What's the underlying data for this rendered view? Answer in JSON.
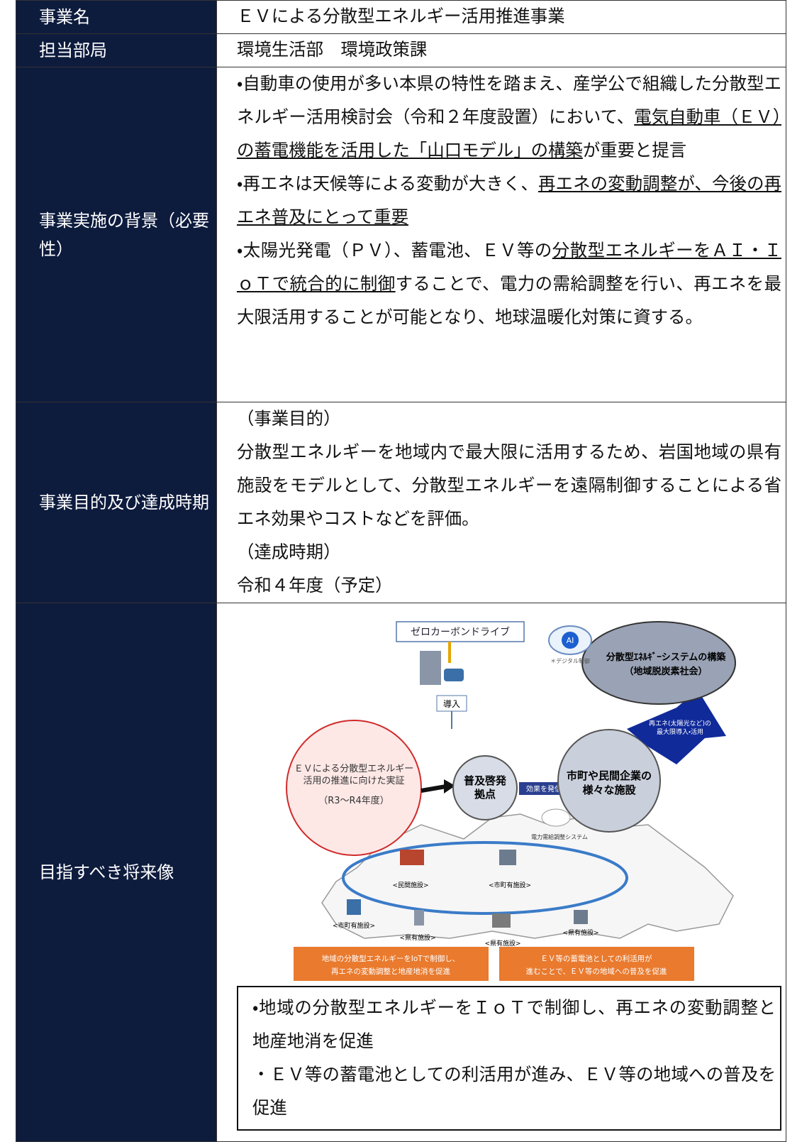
{
  "table": {
    "rows": [
      {
        "label": "事業名",
        "content": "ＥＶによる分散型エネルギー活用推進事業"
      },
      {
        "label": "担当部局",
        "content": "環境生活部　環境政策課"
      },
      {
        "label": "事業実施の背景（必要性）",
        "paragraphs": [
          [
            {
              "text": "・自動車の使用が多い本県の特性を踏まえ、産学公で組織した分散型エネルギー活用検討会（令和２年度設置）において、"
            },
            {
              "text": "電気自動車（ＥＶ）の蓄電機能を活用した「山口モデル」の構築",
              "underline": true
            },
            {
              "text": "が重要と提言"
            }
          ],
          [
            {
              "text": "・再エネは天候等による変動が大きく、"
            },
            {
              "text": "再エネの変動調整が、今後の再エネ普及にとって重要",
              "underline": true
            }
          ],
          [
            {
              "text": "・太陽光発電（ＰＶ）、蓄電池、ＥＶ等の"
            },
            {
              "text": "分散型エネルギーをＡＩ・ＩｏＴで統合的に制御",
              "underline": true
            },
            {
              "text": "することで、電力の需給調整を行い、再エネを最大限活用することが可能となり、地球温暖化対策に資する。"
            }
          ]
        ]
      },
      {
        "label": "事業目的及び達成時期",
        "paragraphs": [
          [
            {
              "text": "（事業目的）"
            }
          ],
          [
            {
              "text": "分散型エネルギーを地域内で最大限に活用するため、岩国地域の県有施設をモデルとして、分散型エネルギーを遠隔制御することによる省エネ効果やコストなどを評価。"
            }
          ],
          [
            {
              "text": "（達成時期）"
            }
          ],
          [
            {
              "text": "令和４年度（予定）"
            }
          ]
        ]
      },
      {
        "label": "目指すべき将来像",
        "figure": {
          "zero_carbon_drive": "ゼロカーボンドライブ",
          "introduction": "導入",
          "demo_title": [
            "ＥＶによる分散型エネルギー",
            "活用の推進に向けた実証"
          ],
          "demo_period": "（R3〜R4年度）",
          "hub": [
            "普及啓発",
            "拠点"
          ],
          "dissemination": "効果を発信",
          "facilities": [
            "市町や民間企業の",
            "様々な施設"
          ],
          "renewables": [
            "再エネ(太陽光など)の",
            "最大限導入・活用"
          ],
          "system": [
            "分散型ｴﾈﾙｷﾞｰシステムの構築",
            "（地域脱炭素社会）"
          ],
          "ai": "AI",
          "digital": "＊デジタル制御",
          "grid_system": "電力需給調整システム",
          "site_labels": [
            "<民間施設>",
            "<市町有施設>",
            "<市町有施設>",
            "<県有施設>",
            "<県有施設>",
            "<県有施設>"
          ],
          "box_left": [
            "地域の分散型エネルギーをIoTで制御し、",
            "再エネの変動調整と地産地消を促進"
          ],
          "box_right": [
            "ＥＶ等の蓄電池としての利活用が",
            "進むことで、ＥＶ等の地域への普及を促進"
          ]
        },
        "summary": [
          "・地域の分散型エネルギーをＩｏＴで制御し、再エネの変動調整と地産地消を促進",
          "・ＥＶ等の蓄電池としての利活用が進み、ＥＶ等の地域への普及を促進"
        ]
      }
    ]
  }
}
